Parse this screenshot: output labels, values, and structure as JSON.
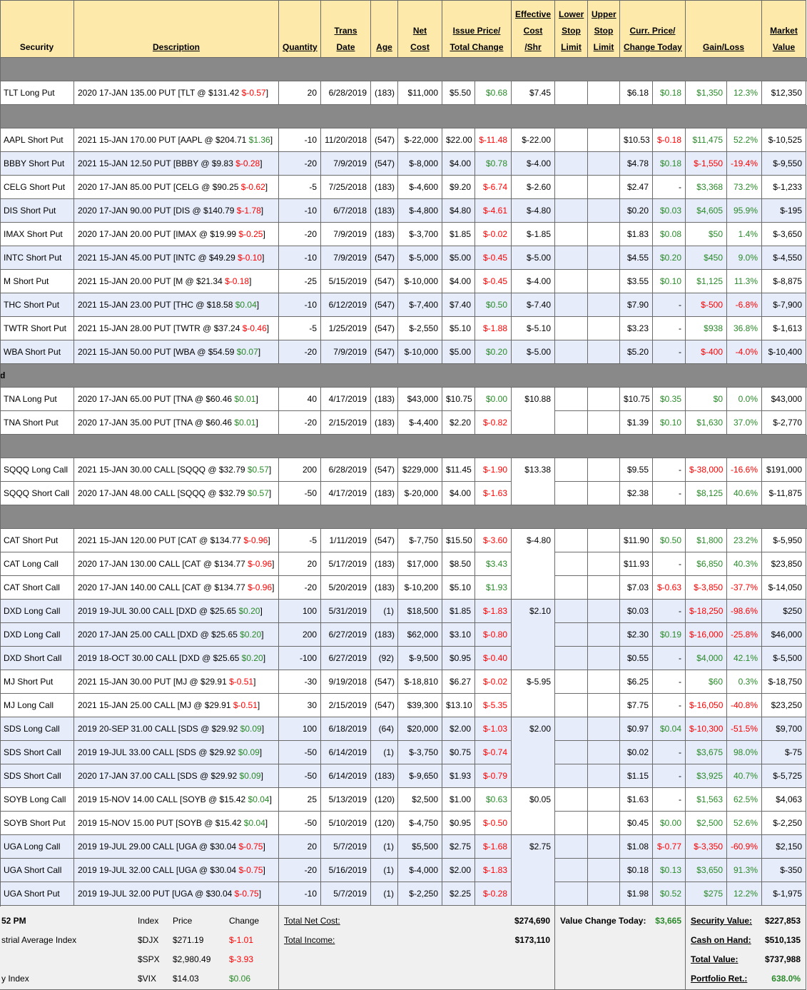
{
  "headers": [
    [
      "Security"
    ],
    [
      "Description"
    ],
    [
      "Quantity"
    ],
    [
      "Trans",
      "Date"
    ],
    [
      "Age"
    ],
    [
      "Net",
      "Cost"
    ],
    [
      "Issue Price/",
      "Total Change"
    ],
    [
      "Effective",
      "Cost",
      "/Shr"
    ],
    [
      "Lower",
      "Stop",
      "Limit"
    ],
    [
      "Upper",
      "Stop",
      "Limit"
    ],
    [
      "Curr. Price/",
      "Change Today"
    ],
    [
      "Gain/Loss"
    ],
    [
      "Market",
      "Value"
    ]
  ],
  "colors": {
    "gain": "#2a8a2a",
    "loss": "#ff0000",
    "shade": "#e6ecf9",
    "header": "#fde9aa",
    "bar": "#898989"
  },
  "sections": [
    {
      "groups": [
        {
          "effective_cost": "$7.45",
          "shaded": false,
          "rows": [
            [
              "TLT Long Put",
              "2020 17-JAN 135.00 PUT [TLT @ $131.42 ",
              "$-0.57",
              "]",
              "20",
              "6/28/2019",
              "(183)",
              "$11,000",
              "$5.50",
              "$0.68",
              "$6.18",
              "$0.18",
              "$1,350",
              "12.3%",
              "$12,350"
            ]
          ]
        }
      ]
    },
    {
      "groups": [
        {
          "effective_cost": "$-22.00",
          "shaded": false,
          "rows": [
            [
              "AAPL Short Put",
              "2021 15-JAN 170.00 PUT [AAPL @ $204.71 ",
              "$1.36",
              "]",
              "-10",
              "11/20/2018",
              "(547)",
              "$-22,000",
              "$22.00",
              "$-11.48",
              "$10.53",
              "$-0.18",
              "$11,475",
              "52.2%",
              "$-10,525"
            ]
          ]
        },
        {
          "effective_cost": "$-4.00",
          "shaded": true,
          "rows": [
            [
              "BBBY Short Put",
              "2021 15-JAN 12.50 PUT [BBBY @ $9.83 ",
              "$-0.28",
              "]",
              "-20",
              "7/9/2019",
              "(547)",
              "$-8,000",
              "$4.00",
              "$0.78",
              "$4.78",
              "$0.18",
              "$-1,550",
              "-19.4%",
              "$-9,550"
            ]
          ]
        },
        {
          "effective_cost": "$-2.60",
          "shaded": false,
          "rows": [
            [
              "CELG Short Put",
              "2020 17-JAN 85.00 PUT [CELG @ $90.25 ",
              "$-0.62",
              "]",
              "-5",
              "7/25/2018",
              "(183)",
              "$-4,600",
              "$9.20",
              "$-6.74",
              "$2.47",
              "-",
              "$3,368",
              "73.2%",
              "$-1,233"
            ]
          ]
        },
        {
          "effective_cost": "$-4.80",
          "shaded": true,
          "rows": [
            [
              "DIS Short Put",
              "2020 17-JAN 90.00 PUT [DIS @ $140.79 ",
              "$-1.78",
              "]",
              "-10",
              "6/7/2018",
              "(183)",
              "$-4,800",
              "$4.80",
              "$-4.61",
              "$0.20",
              "$0.03",
              "$4,605",
              "95.9%",
              "$-195"
            ]
          ]
        },
        {
          "effective_cost": "$-1.85",
          "shaded": false,
          "rows": [
            [
              "IMAX Short Put",
              "2020 17-JAN 20.00 PUT [IMAX @ $19.99 ",
              "$-0.25",
              "]",
              "-20",
              "7/9/2019",
              "(183)",
              "$-3,700",
              "$1.85",
              "$-0.02",
              "$1.83",
              "$0.08",
              "$50",
              "1.4%",
              "$-3,650"
            ]
          ]
        },
        {
          "effective_cost": "$-5.00",
          "shaded": true,
          "rows": [
            [
              "INTC Short Put",
              "2021 15-JAN 45.00 PUT [INTC @ $49.29 ",
              "$-0.10",
              "]",
              "-10",
              "7/9/2019",
              "(547)",
              "$-5,000",
              "$5.00",
              "$-0.45",
              "$4.55",
              "$0.20",
              "$450",
              "9.0%",
              "$-4,550"
            ]
          ]
        },
        {
          "effective_cost": "$-4.00",
          "shaded": false,
          "rows": [
            [
              "M Short Put",
              "2021 15-JAN 20.00 PUT [M @ $21.34 ",
              "$-0.18",
              "]",
              "-25",
              "5/15/2019",
              "(547)",
              "$-10,000",
              "$4.00",
              "$-0.45",
              "$3.55",
              "$0.10",
              "$1,125",
              "11.3%",
              "$-8,875"
            ]
          ]
        },
        {
          "effective_cost": "$-7.40",
          "shaded": true,
          "rows": [
            [
              "THC Short Put",
              "2021 15-JAN 23.00 PUT [THC @ $18.58 ",
              "$0.04",
              "]",
              "-10",
              "6/12/2019",
              "(547)",
              "$-7,400",
              "$7.40",
              "$0.50",
              "$7.90",
              "-",
              "$-500",
              "-6.8%",
              "$-7,900"
            ]
          ]
        },
        {
          "effective_cost": "$-5.10",
          "shaded": false,
          "rows": [
            [
              "TWTR Short Put",
              "2021 15-JAN 28.00 PUT [TWTR @ $37.24 ",
              "$-0.46",
              "]",
              "-5",
              "1/25/2019",
              "(547)",
              "$-2,550",
              "$5.10",
              "$-1.88",
              "$3.23",
              "-",
              "$938",
              "36.8%",
              "$-1,613"
            ]
          ]
        },
        {
          "effective_cost": "$-5.00",
          "shaded": true,
          "rows": [
            [
              "WBA Short Put",
              "2021 15-JAN 50.00 PUT [WBA @ $54.59 ",
              "$0.07",
              "]",
              "-20",
              "7/9/2019",
              "(547)",
              "$-10,000",
              "$5.00",
              "$0.20",
              "$5.20",
              "-",
              "$-400",
              "-4.0%",
              "$-10,400"
            ]
          ]
        }
      ]
    },
    {
      "label": "d",
      "groups": [
        {
          "effective_cost": "$10.88",
          "shaded": false,
          "rows": [
            [
              "TNA Long Put",
              "2020 17-JAN 65.00 PUT [TNA @ $60.46 ",
              "$0.01",
              "]",
              "40",
              "4/17/2019",
              "(183)",
              "$43,000",
              "$10.75",
              "$0.00",
              "$10.75",
              "$0.35",
              "$0",
              "0.0%",
              "$43,000"
            ],
            [
              "TNA Short Put",
              "2020 17-JAN 35.00 PUT [TNA @ $60.46 ",
              "$0.01",
              "]",
              "-20",
              "2/15/2019",
              "(183)",
              "$-4,400",
              "$2.20",
              "$-0.82",
              "$1.39",
              "$0.10",
              "$1,630",
              "37.0%",
              "$-2,770"
            ]
          ]
        }
      ]
    },
    {
      "groups": [
        {
          "effective_cost": "$13.38",
          "shaded": false,
          "rows": [
            [
              "SQQQ Long Call",
              "2021 15-JAN 30.00 CALL [SQQQ @ $32.79 ",
              "$0.57",
              "]",
              "200",
              "6/28/2019",
              "(547)",
              "$229,000",
              "$11.45",
              "$-1.90",
              "$9.55",
              "-",
              "$-38,000",
              "-16.6%",
              "$191,000"
            ],
            [
              "SQQQ Short Call",
              "2020 17-JAN 48.00 CALL [SQQQ @ $32.79 ",
              "$0.57",
              "]",
              "-50",
              "4/17/2019",
              "(183)",
              "$-20,000",
              "$4.00",
              "$-1.63",
              "$2.38",
              "-",
              "$8,125",
              "40.6%",
              "$-11,875"
            ]
          ]
        }
      ]
    },
    {
      "groups": [
        {
          "effective_cost": "$-4.80",
          "shaded": false,
          "rows": [
            [
              "CAT Short Put",
              "2021 15-JAN 120.00 PUT [CAT @ $134.77 ",
              "$-0.96",
              "]",
              "-5",
              "1/11/2019",
              "(547)",
              "$-7,750",
              "$15.50",
              "$-3.60",
              "$11.90",
              "$0.50",
              "$1,800",
              "23.2%",
              "$-5,950"
            ],
            [
              "CAT Long Call",
              "2020 17-JAN 130.00 CALL [CAT @ $134.77 ",
              "$-0.96",
              "]",
              "20",
              "5/17/2019",
              "(183)",
              "$17,000",
              "$8.50",
              "$3.43",
              "$11.93",
              "-",
              "$6,850",
              "40.3%",
              "$23,850"
            ],
            [
              "CAT Short Call",
              "2020 17-JAN 140.00 CALL [CAT @ $134.77 ",
              "$-0.96",
              "]",
              "-20",
              "5/20/2019",
              "(183)",
              "$-10,200",
              "$5.10",
              "$1.93",
              "$7.03",
              "$-0.63",
              "$-3,850",
              "-37.7%",
              "$-14,050"
            ]
          ]
        },
        {
          "effective_cost": "$2.10",
          "shaded": true,
          "rows": [
            [
              "DXD Long Call",
              "2019 19-JUL 30.00 CALL [DXD @ $25.65 ",
              "$0.20",
              "]",
              "100",
              "5/31/2019",
              "(1)",
              "$18,500",
              "$1.85",
              "$-1.83",
              "$0.03",
              "-",
              "$-18,250",
              "-98.6%",
              "$250"
            ],
            [
              "DXD Long Call",
              "2020 17-JAN 25.00 CALL [DXD @ $25.65 ",
              "$0.20",
              "]",
              "200",
              "6/27/2019",
              "(183)",
              "$62,000",
              "$3.10",
              "$-0.80",
              "$2.30",
              "$0.19",
              "$-16,000",
              "-25.8%",
              "$46,000"
            ],
            [
              "DXD Short Call",
              "2019 18-OCT 30.00 CALL [DXD @ $25.65 ",
              "$0.20",
              "]",
              "-100",
              "6/27/2019",
              "(92)",
              "$-9,500",
              "$0.95",
              "$-0.40",
              "$0.55",
              "-",
              "$4,000",
              "42.1%",
              "$-5,500"
            ]
          ]
        },
        {
          "effective_cost": "$-5.95",
          "shaded": false,
          "rows": [
            [
              "MJ Short Put",
              "2021 15-JAN 30.00 PUT [MJ @ $29.91 ",
              "$-0.51",
              "]",
              "-30",
              "9/19/2018",
              "(547)",
              "$-18,810",
              "$6.27",
              "$-0.02",
              "$6.25",
              "-",
              "$60",
              "0.3%",
              "$-18,750"
            ],
            [
              "MJ Long Call",
              "2021 15-JAN 25.00 CALL [MJ @ $29.91 ",
              "$-0.51",
              "]",
              "30",
              "2/15/2019",
              "(547)",
              "$39,300",
              "$13.10",
              "$-5.35",
              "$7.75",
              "-",
              "$-16,050",
              "-40.8%",
              "$23,250"
            ]
          ]
        },
        {
          "effective_cost": "$2.00",
          "shaded": true,
          "rows": [
            [
              "SDS Long Call",
              "2019 20-SEP 31.00 CALL [SDS @ $29.92 ",
              "$0.09",
              "]",
              "100",
              "6/18/2019",
              "(64)",
              "$20,000",
              "$2.00",
              "$-1.03",
              "$0.97",
              "$0.04",
              "$-10,300",
              "-51.5%",
              "$9,700"
            ],
            [
              "SDS Short Call",
              "2019 19-JUL 33.00 CALL [SDS @ $29.92 ",
              "$0.09",
              "]",
              "-50",
              "6/14/2019",
              "(1)",
              "$-3,750",
              "$0.75",
              "$-0.74",
              "$0.02",
              "-",
              "$3,675",
              "98.0%",
              "$-75"
            ],
            [
              "SDS Short Call",
              "2020 17-JAN 37.00 CALL [SDS @ $29.92 ",
              "$0.09",
              "]",
              "-50",
              "6/14/2019",
              "(183)",
              "$-9,650",
              "$1.93",
              "$-0.79",
              "$1.15",
              "-",
              "$3,925",
              "40.7%",
              "$-5,725"
            ]
          ]
        },
        {
          "effective_cost": "$0.05",
          "shaded": false,
          "rows": [
            [
              "SOYB Long Call",
              "2019 15-NOV 14.00 CALL [SOYB @ $15.42 ",
              "$0.04",
              "]",
              "25",
              "5/13/2019",
              "(120)",
              "$2,500",
              "$1.00",
              "$0.63",
              "$1.63",
              "-",
              "$1,563",
              "62.5%",
              "$4,063"
            ],
            [
              "SOYB Short Put",
              "2019 15-NOV 15.00 PUT [SOYB @ $15.42 ",
              "$0.04",
              "]",
              "-50",
              "5/10/2019",
              "(120)",
              "$-4,750",
              "$0.95",
              "$-0.50",
              "$0.45",
              "$0.00",
              "$2,500",
              "52.6%",
              "$-2,250"
            ]
          ]
        },
        {
          "effective_cost": "$2.75",
          "shaded": true,
          "rows": [
            [
              "UGA Long Call",
              "2019 19-JUL 29.00 CALL [UGA @ $30.04 ",
              "$-0.75",
              "]",
              "20",
              "5/7/2019",
              "(1)",
              "$5,500",
              "$2.75",
              "$-1.68",
              "$1.08",
              "$-0.77",
              "$-3,350",
              "-60.9%",
              "$2,150"
            ],
            [
              "UGA Short Call",
              "2019 19-JUL 32.00 CALL [UGA @ $30.04 ",
              "$-0.75",
              "]",
              "-20",
              "5/16/2019",
              "(1)",
              "$-4,000",
              "$2.00",
              "$-1.83",
              "$0.18",
              "$0.13",
              "$3,650",
              "91.3%",
              "$-350"
            ],
            [
              "UGA Short Put",
              "2019 19-JUL 32.00 PUT [UGA @ $30.04 ",
              "$-0.75",
              "]",
              "-10",
              "5/7/2019",
              "(1)",
              "$-2,250",
              "$2.25",
              "$-0.28",
              "$1.98",
              "$0.52",
              "$275",
              "12.2%",
              "$-1,975"
            ]
          ]
        }
      ]
    }
  ],
  "footer": {
    "time": "52 PM",
    "index_headers": [
      "Index",
      "Price",
      "Change"
    ],
    "indices": [
      {
        "name": "strial Average Index",
        "symbol": "$DJX",
        "price": "$271.19",
        "change": "$-1.01"
      },
      {
        "symbol": "$SPX",
        "price": "$2,980.49",
        "change": "$-3.93"
      },
      {
        "name": "y Index",
        "symbol": "$VIX",
        "price": "$14.03",
        "change": "$0.06"
      }
    ],
    "totals": [
      {
        "label": "Total Net Cost:",
        "value": "$274,690"
      },
      {
        "label": "Total Income:",
        "value": "$173,110"
      }
    ],
    "value_change": {
      "label": "Value Change Today:",
      "value": "$3,665"
    },
    "summary": [
      {
        "label": "Security Value:",
        "value": "$227,853"
      },
      {
        "label": "Cash on Hand:",
        "value": "$510,135"
      },
      {
        "label": "Total Value:",
        "value": "$737,988"
      },
      {
        "label": "Portfolio Ret.:",
        "value": "638.0%"
      }
    ]
  }
}
